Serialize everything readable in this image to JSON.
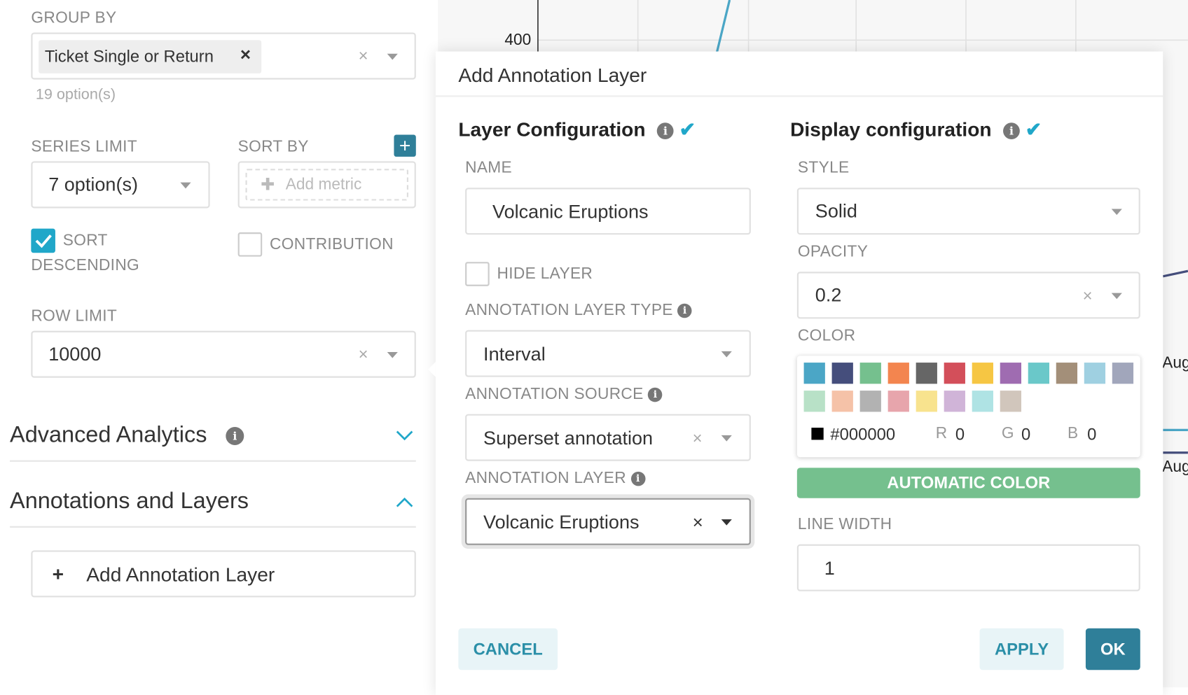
{
  "left": {
    "group_by": {
      "label": "GROUP BY",
      "tag": "Ticket Single or Return",
      "hint": "19 option(s)"
    },
    "series_limit": {
      "label": "SERIES LIMIT",
      "value": "7 option(s)"
    },
    "sort_by": {
      "label": "SORT BY",
      "placeholder": "Add metric"
    },
    "sort_descending": {
      "label1": "SORT",
      "label2": "DESCENDING",
      "checked": true
    },
    "contribution": {
      "label": "CONTRIBUTION",
      "checked": false
    },
    "row_limit": {
      "label": "ROW LIMIT",
      "value": "10000"
    },
    "advanced_analytics": "Advanced Analytics",
    "annotations_layers": "Annotations and Layers",
    "add_annotation_layer": "Add Annotation Layer"
  },
  "chart": {
    "y_tick": "400",
    "x_ticks": [
      "Aug",
      "Aug"
    ]
  },
  "modal": {
    "title": "Add Annotation Layer",
    "layer_config": {
      "title": "Layer Configuration",
      "name_label": "NAME",
      "name_value": "Volcanic Eruptions",
      "hide_layer": "HIDE LAYER",
      "hide_checked": false,
      "type_label": "ANNOTATION LAYER TYPE",
      "type_value": "Interval",
      "source_label": "ANNOTATION SOURCE",
      "source_value": "Superset annotation",
      "layer_label": "ANNOTATION LAYER",
      "layer_value": "Volcanic Eruptions"
    },
    "display_config": {
      "title": "Display configuration",
      "style_label": "STYLE",
      "style_value": "Solid",
      "opacity_label": "OPACITY",
      "opacity_value": "0.2",
      "color_label": "COLOR",
      "swatches": [
        "#4ba6c6",
        "#454e7c",
        "#75c08e",
        "#f3854f",
        "#666666",
        "#d34f5a",
        "#f6c643",
        "#9f6cb1",
        "#6ac8c9",
        "#a38f79",
        "#9fd0e1",
        "#a1a6bb",
        "#b8e1c7",
        "#f5c2a8",
        "#b2b2b2",
        "#e7a5ac",
        "#f8e38e",
        "#d0b4d8",
        "#afe3e4",
        "#d1c6bc"
      ],
      "hex": "#000000",
      "r_label": "R",
      "r": "0",
      "g_label": "G",
      "g": "0",
      "b_label": "B",
      "b": "0",
      "auto_color": "AUTOMATIC COLOR",
      "line_width_label": "LINE WIDTH",
      "line_width_value": "1"
    },
    "cancel": "CANCEL",
    "apply": "APPLY",
    "ok": "OK"
  },
  "colors": {
    "primary": "#20a7c9",
    "ok": "#2f7f99",
    "auto": "#75c08e"
  }
}
